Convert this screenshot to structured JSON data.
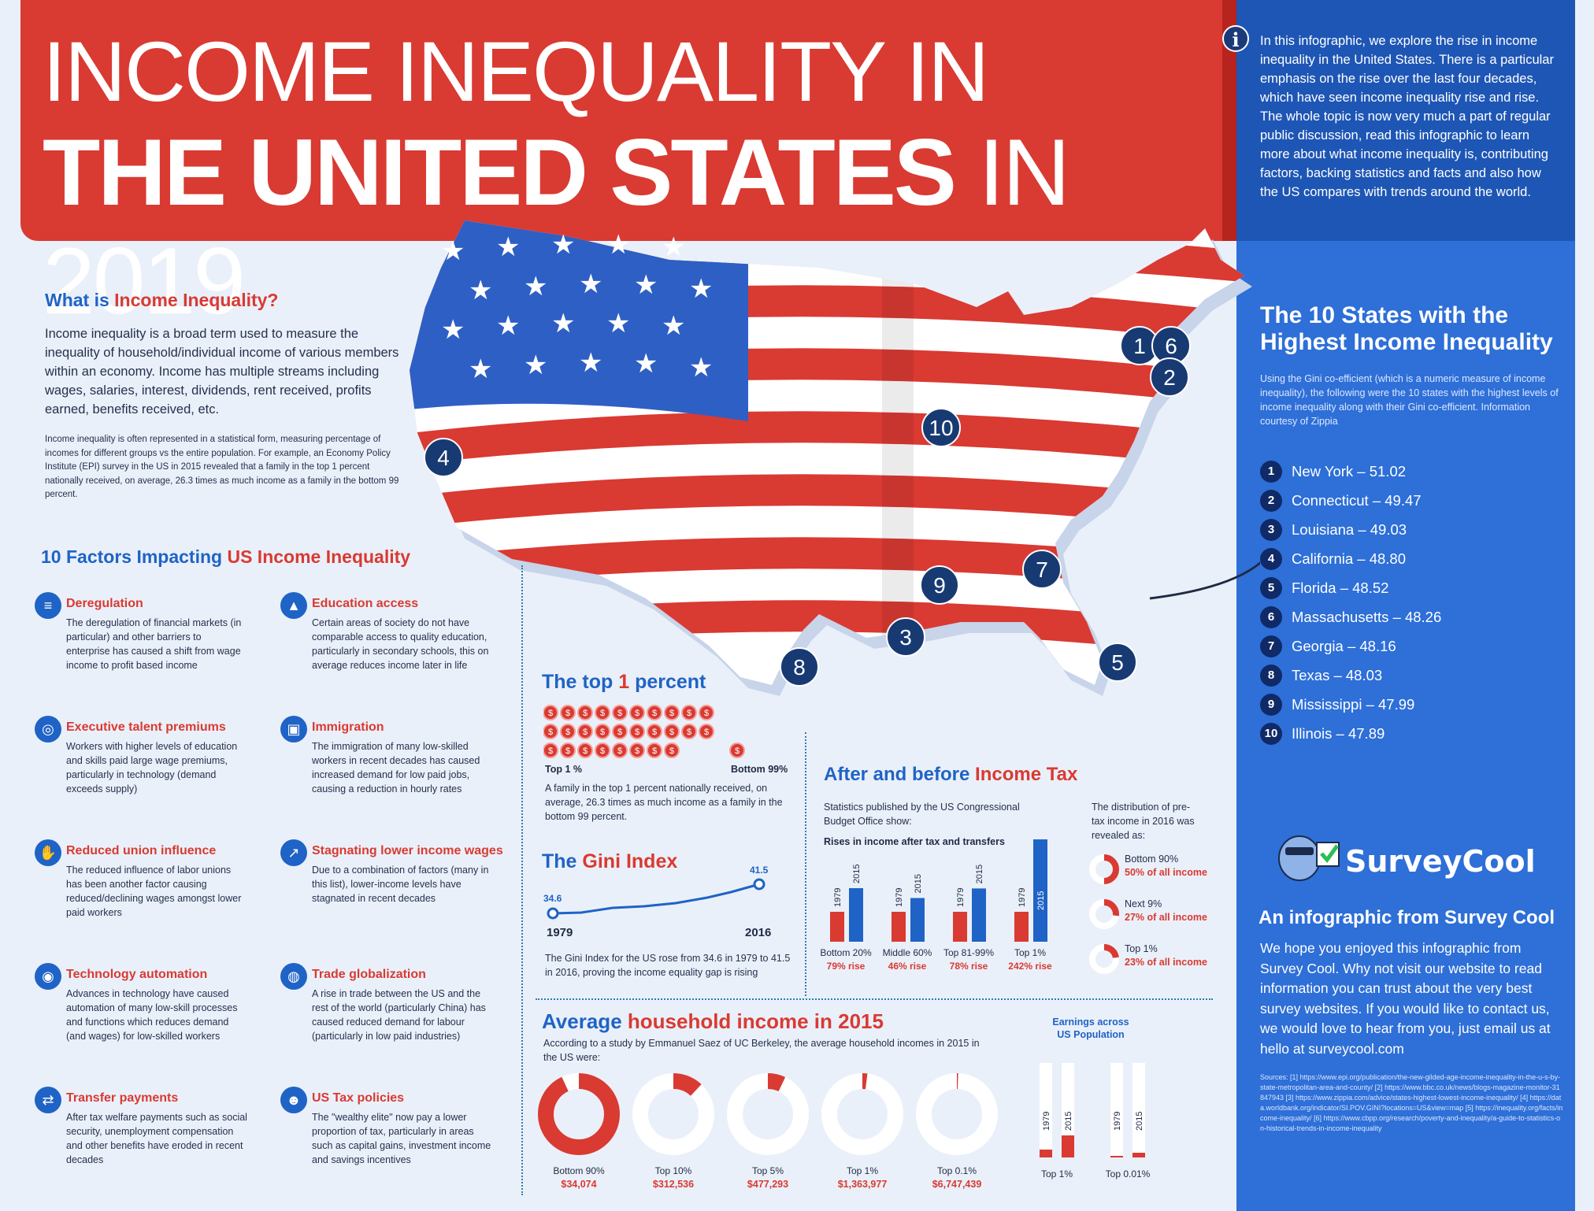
{
  "header": {
    "line1": "INCOME INEQUALITY IN",
    "line2_bold": "THE UNITED STATES",
    "line2_rest": " IN 2019"
  },
  "intro": "In this infographic, we explore the rise in income inequality in the United States. There is a particular emphasis on the rise over the last four decades, which have seen income inequality rise and rise. The whole topic is now very much a part of regular public discussion, read this infographic to learn more about what income inequality is, contributing factors, backing statistics and facts and also how the US compares with trends around the world.",
  "what": {
    "title_a": "What is ",
    "title_b": "Income Inequality?",
    "text": "Income inequality is a broad term used to measure the inequality of household/individual income of various members within an economy. Income has multiple streams including wages, salaries, interest, dividends, rent received, profits earned, benefits received, etc.",
    "small": "Income inequality is often represented in a statistical form, measuring percentage of incomes for different groups vs the entire population. For example, an Economy Policy Institute (EPI) survey in the US in 2015 revealed that a family in the top 1 percent nationally received, on average, 26.3 times as much income as a family in the bottom 99 percent."
  },
  "factors": {
    "title_a": "10 Factors Impacting ",
    "title_b": "US Income Inequality",
    "items": [
      {
        "title": "Deregulation",
        "icon": "document-icon",
        "text": "The deregulation of financial markets (in particular) and other barriers to enterprise has caused a shift from wage income to profit based income"
      },
      {
        "title": "Education access",
        "icon": "graduation-cap-icon",
        "text": "Certain areas of society do not have comparable access to quality education, particularly in secondary schools, this on average reduces income later in life"
      },
      {
        "title": "Executive talent premiums",
        "icon": "person-search-icon",
        "text": "Workers with higher levels of education and skills paid large wage premiums, particularly in technology (demand exceeds supply)"
      },
      {
        "title": "Immigration",
        "icon": "passport-icon",
        "text": "The immigration of many low-skilled workers in recent decades has caused increased demand for low paid jobs, causing a reduction in hourly rates"
      },
      {
        "title": "Reduced union influence",
        "icon": "handshake-icon",
        "text": "The reduced influence of labor unions has been another factor causing reduced/declining wages amongst lower paid workers"
      },
      {
        "title": "Stagnating lower income wages",
        "icon": "trend-icon",
        "text": "Due to a combination of factors (many in this list), lower-income levels have stagnated in recent decades"
      },
      {
        "title": "Technology automation",
        "icon": "robot-icon",
        "text": "Advances in technology have caused automation of many low-skill processes and functions which reduces demand (and wages) for low-skilled workers"
      },
      {
        "title": "Trade globalization",
        "icon": "globe-icon",
        "text": "A rise in trade between the US and the rest of the world (particularly China) has caused reduced demand for labour (particularly in low paid industries)"
      },
      {
        "title": "Transfer payments",
        "icon": "transfer-icon",
        "text": "After tax welfare payments such as social security, unemployment compensation and other benefits have eroded in recent decades"
      },
      {
        "title": "US Tax policies",
        "icon": "tax-face-icon",
        "text": "The \"wealthy elite\" now pay a lower proportion of tax, particularly in areas such as capital gains, investment income and savings incentives"
      }
    ]
  },
  "states": {
    "title": "The 10 States with the Highest Income Inequality",
    "intro": "Using the Gini co-efficient (which is a numeric measure of income inequality), the following were the 10 states with the highest levels of income inequality along with their Gini co-efficient. Information courtesy of Zippia",
    "list": [
      {
        "n": "1",
        "label": "New York – 51.02"
      },
      {
        "n": "2",
        "label": "Connecticut – 49.47"
      },
      {
        "n": "3",
        "label": "Louisiana – 49.03"
      },
      {
        "n": "4",
        "label": "California – 48.80"
      },
      {
        "n": "5",
        "label": "Florida – 48.52"
      },
      {
        "n": "6",
        "label": "Massachusetts – 48.26"
      },
      {
        "n": "7",
        "label": "Georgia – 48.16"
      },
      {
        "n": "8",
        "label": "Texas – 48.03"
      },
      {
        "n": "9",
        "label": "Mississippi – 47.99"
      },
      {
        "n": "10",
        "label": "Illinois – 47.89"
      }
    ]
  },
  "top1": {
    "title_a": "The top ",
    "title_b": "1",
    "title_c": " percent",
    "coin_symbol": "$",
    "top_label": "Top 1 %",
    "bottom_label": "Bottom 99%",
    "text": "A family in the top 1 percent nationally received, on average, 26.3 times as much income as a family in the bottom 99 percent."
  },
  "gini": {
    "title_a": "The ",
    "title_b": "Gini Index",
    "start_value": "34.6",
    "end_value": "41.5",
    "start_year": "1979",
    "end_year": "2016",
    "text": "The Gini Index for the US rose from 34.6 in 1979 to 41.5 in 2016, proving the income equality gap is rising"
  },
  "tax": {
    "title_a": "After and before ",
    "title_b": "Income Tax",
    "text": "Statistics published by the US Congressional Budget Office show:",
    "subtitle": "Rises in income after tax and transfers",
    "dist_text": "The distribution of pre-tax income in 2016 was revealed as:",
    "dist": [
      {
        "label": "Bottom 90%",
        "value": "50% of all income",
        "pct": 50
      },
      {
        "label": "Next 9%",
        "value": "27% of all income",
        "pct": 27
      },
      {
        "label": "Top 1%",
        "value": "23% of all income",
        "pct": 23
      }
    ]
  },
  "avg": {
    "title_a": "Average ",
    "title_b": "household income in 2015",
    "text": "According to a study by Emmanuel Saez of UC Berkeley, the average household incomes in 2015 in the US were:",
    "earn_title": "Earnings across US Population"
  },
  "surveycool": {
    "logo": "SurveyCool",
    "title": "An infographic from Survey Cool",
    "text": "We hope you enjoyed this infographic from Survey Cool. Why not visit our website to read information you can trust about the very best survey websites. If you would like to contact us, we would love to hear from you, just email us at hello at surveycool.com",
    "sources": "Sources: [1] https://www.epi.org/publication/the-new-gilded-age-income-inequality-in-the-u-s-by-state-metropolitan-area-and-county/ [2] https://www.bbc.co.uk/news/blogs-magazine-monitor-31847943 [3] https://www.zippia.com/advice/states-highest-lowest-income-inequality/ [4] https://data.worldbank.org/indicator/SI.POV.GINI?locations=US&view=map [5] https://inequality.org/facts/income-inequality/ [6] https://www.cbpp.org/research/poverty-and-inequality/a-guide-to-statistics-on-historical-trends-in-income-inequality"
  },
  "colors": {
    "red": "#d93a32",
    "blue": "#1f63c6",
    "navy": "#173a73"
  },
  "chart_data": [
    {
      "type": "line",
      "title": "The Gini Index",
      "x": [
        1979,
        2016
      ],
      "values": [
        34.6,
        41.5
      ]
    },
    {
      "type": "bar",
      "title": "Rises in income after tax and transfers",
      "categories": [
        "Bottom 20%",
        "Middle 60%",
        "Top 81-99%",
        "Top 1%"
      ],
      "rise_labels": [
        "79% rise",
        "46% rise",
        "78% rise",
        "242% rise"
      ],
      "series": [
        {
          "name": "1979",
          "values": [
            1,
            1,
            1,
            1
          ]
        },
        {
          "name": "2015",
          "values": [
            1.79,
            1.46,
            1.78,
            3.42
          ]
        }
      ]
    },
    {
      "type": "pie",
      "title": "Average household income in 2015",
      "categories": [
        "Bottom 90%",
        "Top 10%",
        "Top 5%",
        "Top 1%",
        "Top 0.1%"
      ],
      "labels": [
        "$34,074",
        "$312,536",
        "$477,293",
        "$1,363,977",
        "$6,747,439"
      ],
      "values": [
        34074,
        312536,
        477293,
        1363977,
        6747439
      ]
    },
    {
      "type": "bar",
      "title": "Earnings across US Population",
      "categories": [
        "Top 1%",
        "Top 0.01%"
      ],
      "series_labels": [
        "1979",
        "2015"
      ]
    }
  ]
}
